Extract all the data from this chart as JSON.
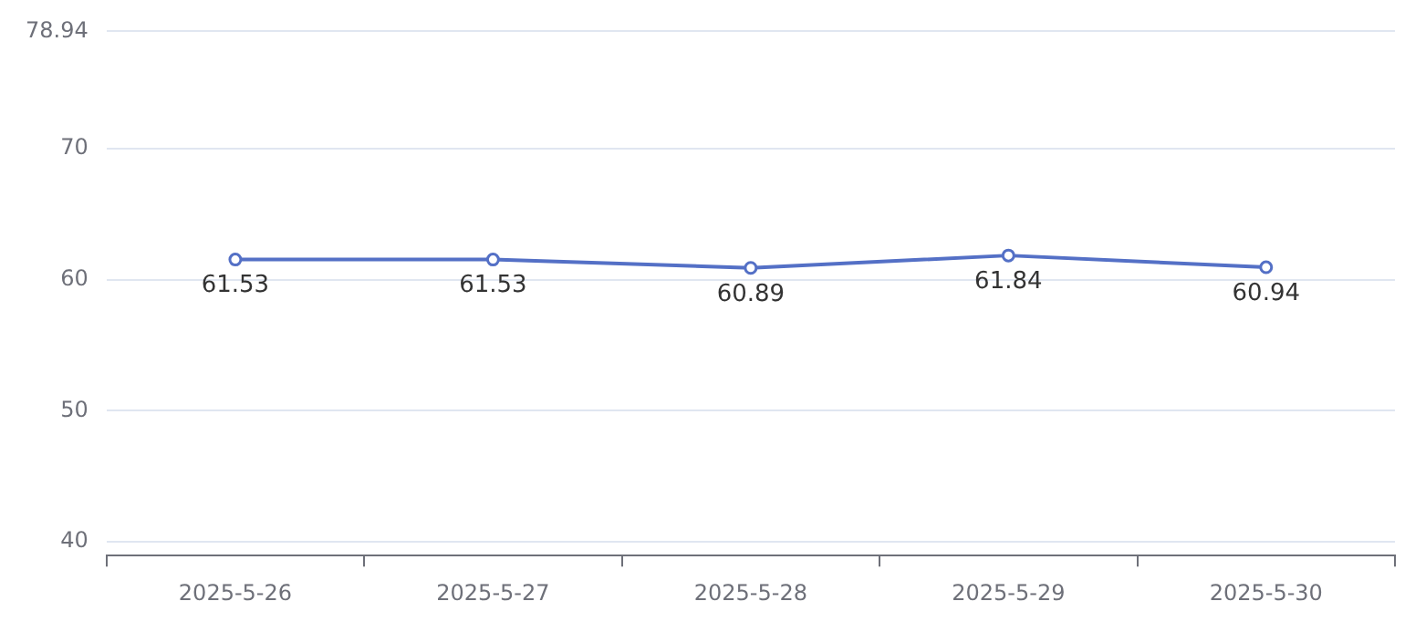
{
  "chart_data": {
    "type": "line",
    "categories": [
      "2025-5-26",
      "2025-5-27",
      "2025-5-28",
      "2025-5-29",
      "2025-5-30"
    ],
    "series": [
      {
        "color": "#5470c6",
        "values": [
          61.53,
          61.53,
          60.89,
          61.84,
          60.94
        ]
      }
    ],
    "ylim": [
      38.94,
      78.94
    ],
    "yticks": [
      40,
      50,
      60,
      70,
      78.94
    ],
    "grid": "y",
    "legend": false,
    "marker": "circle",
    "line_style": "solid",
    "data_labels": true
  }
}
